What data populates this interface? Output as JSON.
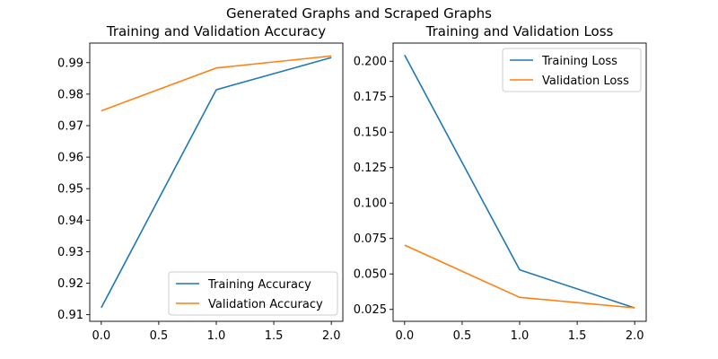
{
  "figure": {
    "suptitle": "Generated Graphs and Scraped Graphs"
  },
  "chart_data": [
    {
      "type": "line",
      "title": "Training and Validation Accuracy",
      "xlabel": "",
      "ylabel": "",
      "x": [
        0,
        1,
        2
      ],
      "xlim": [
        -0.1,
        2.1
      ],
      "ylim": [
        0.9079,
        0.9962
      ],
      "xticks": [
        0.0,
        0.5,
        1.0,
        1.5,
        2.0
      ],
      "xtick_labels": [
        "0.0",
        "0.5",
        "1.0",
        "1.5",
        "2.0"
      ],
      "yticks": [
        0.91,
        0.92,
        0.93,
        0.94,
        0.95,
        0.96,
        0.97,
        0.98,
        0.99
      ],
      "ytick_labels": [
        "0.91",
        "0.92",
        "0.93",
        "0.94",
        "0.95",
        "0.96",
        "0.97",
        "0.98",
        "0.99"
      ],
      "grid": false,
      "legend_position": "lower-right",
      "series": [
        {
          "name": "Training Accuracy",
          "color": "#1f77b4",
          "values": [
            0.9122,
            0.9814,
            0.9916
          ]
        },
        {
          "name": "Validation Accuracy",
          "color": "#ff7f0e",
          "values": [
            0.9747,
            0.9883,
            0.9921
          ]
        }
      ]
    },
    {
      "type": "line",
      "title": "Training and Validation Loss",
      "xlabel": "",
      "ylabel": "",
      "x": [
        0,
        1,
        2
      ],
      "xlim": [
        -0.1,
        2.1
      ],
      "ylim": [
        0.0166,
        0.2128
      ],
      "xticks": [
        0.0,
        0.5,
        1.0,
        1.5,
        2.0
      ],
      "xtick_labels": [
        "0.0",
        "0.5",
        "1.0",
        "1.5",
        "2.0"
      ],
      "yticks": [
        0.025,
        0.05,
        0.075,
        0.1,
        0.125,
        0.15,
        0.175,
        0.2
      ],
      "ytick_labels": [
        "0.025",
        "0.050",
        "0.075",
        "0.100",
        "0.125",
        "0.150",
        "0.175",
        "0.200"
      ],
      "grid": false,
      "legend_position": "upper-right",
      "series": [
        {
          "name": "Training Loss",
          "color": "#1f77b4",
          "values": [
            0.2043,
            0.0529,
            0.026
          ]
        },
        {
          "name": "Validation Loss",
          "color": "#ff7f0e",
          "values": [
            0.0703,
            0.0335,
            0.0261
          ]
        }
      ]
    }
  ]
}
